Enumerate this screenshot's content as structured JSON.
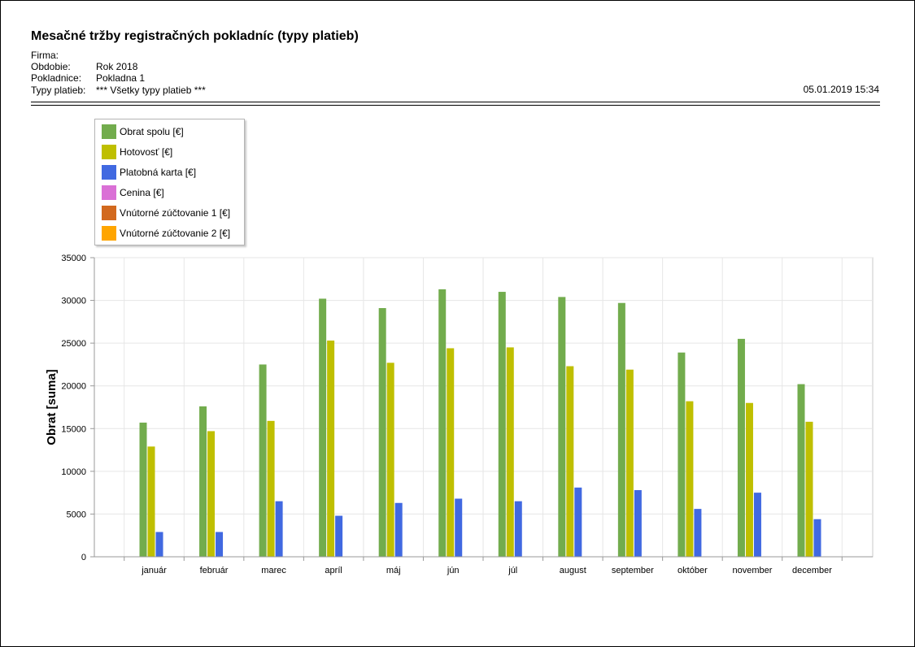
{
  "report": {
    "title": "Mesačné tržby registračných pokladníc (typy platieb)",
    "meta": [
      {
        "label": "Firma:",
        "value": ""
      },
      {
        "label": "Obdobie:",
        "value": "Rok 2018"
      },
      {
        "label": "Pokladnice:",
        "value": "Pokladna 1"
      },
      {
        "label": "Typy platieb:",
        "value": "*** Všetky typy platieb ***"
      }
    ],
    "timestamp": "05.01.2019 15:34"
  },
  "colors": {
    "obrat_spolu": "#72AC4D",
    "hotovost": "#BFBF00",
    "platobna_karta": "#4169E1",
    "cenina": "#DA70D6",
    "vnutorne1": "#D2691E",
    "vnutorne2": "#FFA500"
  },
  "chart_data": {
    "type": "bar",
    "title": "",
    "xlabel": "",
    "ylabel": "Obrat [suma]",
    "ylim": [
      0,
      35000
    ],
    "yticks": [
      "0",
      "5000",
      "10000",
      "15000",
      "20000",
      "25000",
      "30000",
      "35000"
    ],
    "grid": true,
    "legend_position": "top-left",
    "categories": [
      "január",
      "február",
      "marec",
      "apríl",
      "máj",
      "jún",
      "júl",
      "august",
      "september",
      "október",
      "november",
      "december"
    ],
    "series": [
      {
        "name": "Obrat spolu [€]",
        "color": "#72AC4D",
        "values": [
          15700,
          17600,
          22500,
          30200,
          29100,
          31300,
          31000,
          30400,
          29700,
          23900,
          25500,
          20200
        ]
      },
      {
        "name": "Hotovosť [€]",
        "color": "#BFBF00",
        "values": [
          12900,
          14700,
          15900,
          25300,
          22700,
          24400,
          24500,
          22300,
          21900,
          18200,
          18000,
          15800
        ]
      },
      {
        "name": "Platobná karta [€]",
        "color": "#4169E1",
        "values": [
          2900,
          2900,
          6500,
          4800,
          6300,
          6800,
          6500,
          8100,
          7800,
          5600,
          7500,
          4400
        ]
      },
      {
        "name": "Cenina [€]",
        "color": "#DA70D6",
        "values": [
          0,
          0,
          0,
          0,
          0,
          0,
          0,
          0,
          0,
          0,
          0,
          0
        ]
      },
      {
        "name": "Vnútorné zúčtovanie 1 [€]",
        "color": "#D2691E",
        "values": [
          0,
          0,
          0,
          0,
          0,
          0,
          0,
          0,
          0,
          0,
          0,
          0
        ]
      },
      {
        "name": "Vnútorné zúčtovanie 2 [€]",
        "color": "#FFA500",
        "values": [
          0,
          0,
          0,
          0,
          0,
          0,
          0,
          0,
          0,
          0,
          0,
          0
        ]
      }
    ]
  }
}
